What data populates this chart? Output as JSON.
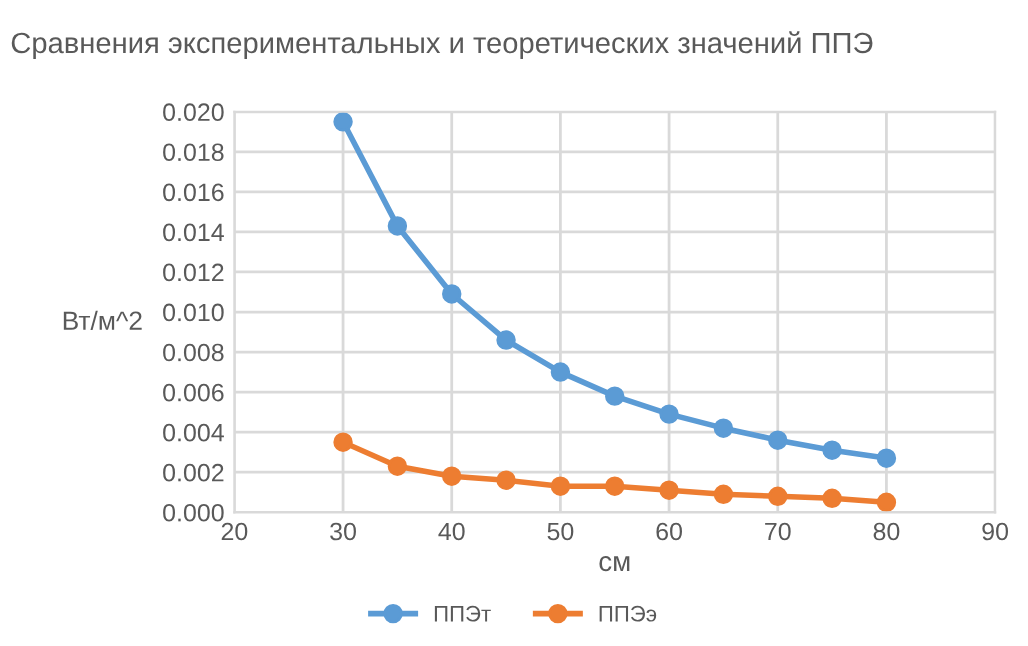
{
  "chart_data": {
    "type": "line",
    "title": "Сравнения экспериментальных и теоретических значений ППЭ",
    "xlabel": "см",
    "ylabel": "Вт/м^2",
    "x": [
      30,
      35,
      40,
      45,
      50,
      55,
      60,
      65,
      70,
      75,
      80
    ],
    "series": [
      {
        "name": "ППЭт",
        "color": "#5b9bd5",
        "values": [
          0.0195,
          0.0143,
          0.0109,
          0.0086,
          0.007,
          0.0058,
          0.0049,
          0.0042,
          0.0036,
          0.0031,
          0.0027
        ]
      },
      {
        "name": "ППЭэ",
        "color": "#ed7d31",
        "values": [
          0.0035,
          0.0023,
          0.0018,
          0.0016,
          0.0013,
          0.0013,
          0.0011,
          0.0009,
          0.0008,
          0.0007,
          0.0005
        ]
      }
    ],
    "xlim": [
      20,
      90
    ],
    "xticks": [
      20,
      30,
      40,
      50,
      60,
      70,
      80,
      90
    ],
    "ylim": [
      0,
      0.02
    ],
    "yticks": [
      {
        "value": 0,
        "label": "0.000"
      },
      {
        "value": 0.002,
        "label": "0.002"
      },
      {
        "value": 0.004,
        "label": "0.004"
      },
      {
        "value": 0.006,
        "label": "0.006"
      },
      {
        "value": 0.008,
        "label": "0.008"
      },
      {
        "value": 0.01,
        "label": "0.010"
      },
      {
        "value": 0.012,
        "label": "0.012"
      },
      {
        "value": 0.014,
        "label": "0.014"
      },
      {
        "value": 0.016,
        "label": "0.016"
      },
      {
        "value": 0.018,
        "label": "0.018"
      },
      {
        "value": 0.02,
        "label": "0.020"
      }
    ],
    "grid": true,
    "legend": "bottom",
    "marker": "circle",
    "line_style": "solid"
  }
}
